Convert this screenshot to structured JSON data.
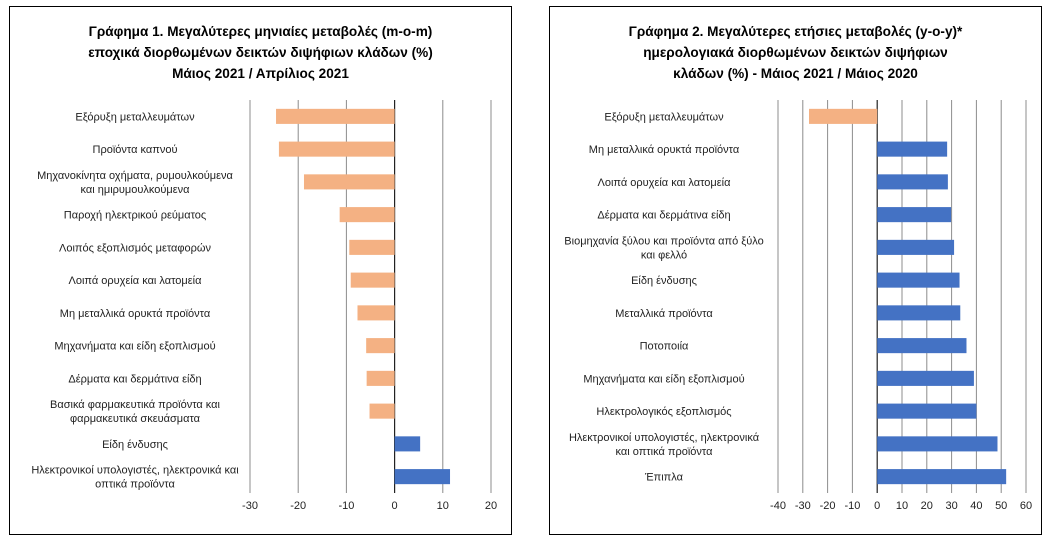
{
  "chart_data": [
    {
      "type": "bar",
      "orientation": "horizontal",
      "title_lines": [
        "Γράφημα 1. Μεγαλύτερες μηνιαίες μεταβολές (m-o-m)",
        "εποχικά διορθωμένων δεικτών διψήφιων κλάδων (%)",
        "Μάιος 2021 / Απρίλιος 2021"
      ],
      "categories": [
        [
          "Εξόρυξη μεταλλευμάτων"
        ],
        [
          "Προϊόντα καπνού"
        ],
        [
          "Μηχανοκίνητα οχήματα, ρυμουλκούμενα",
          "και ημιρυμουλκούμενα"
        ],
        [
          "Παροχή ηλεκτρικού ρεύματος"
        ],
        [
          "Λοιπός εξοπλισμός μεταφορών"
        ],
        [
          "Λοιπά ορυχεία και λατομεία"
        ],
        [
          "Μη μεταλλικά ορυκτά προϊόντα"
        ],
        [
          "Μηχανήματα και είδη εξοπλισμού"
        ],
        [
          "Δέρματα και δερμάτινα είδη"
        ],
        [
          "Βασικά φαρμακευτικά προϊόντα και",
          "φαρμακευτικά σκευάσματα"
        ],
        [
          "Είδη ένδυσης"
        ],
        [
          "Ηλεκτρονικοί υπολογιστές, ηλεκτρονικά και",
          "οπτικά προϊόντα"
        ]
      ],
      "values": [
        -24.6,
        -24.0,
        -18.8,
        -11.4,
        -9.4,
        -9.1,
        -7.7,
        -5.9,
        -5.8,
        -5.2,
        5.3,
        11.5
      ],
      "xlim": [
        -30,
        20
      ],
      "xticks": [
        -30,
        -20,
        -10,
        0,
        10,
        20
      ],
      "grid": true,
      "colors": {
        "negative": "#F4B183",
        "positive": "#4472C4"
      }
    },
    {
      "type": "bar",
      "orientation": "horizontal",
      "title_lines": [
        "Γράφημα 2. Μεγαλύτερες ετήσιες μεταβολές (y-o-y)*",
        "ημερολογιακά διορθωμένων δεικτών διψήφιων",
        "κλάδων (%) - Μάιος 2021 / Μάιος 2020"
      ],
      "categories": [
        [
          "Εξόρυξη μεταλλευμάτων"
        ],
        [
          "Μη μεταλλικά ορυκτά προϊόντα"
        ],
        [
          "Λοιπά ορυχεία και λατομεία"
        ],
        [
          "Δέρματα και δερμάτινα είδη"
        ],
        [
          "Βιομηχανία ξύλου και προϊόντα από ξύλο",
          "και φελλό"
        ],
        [
          "Είδη ένδυσης"
        ],
        [
          "Μεταλλικά προϊόντα"
        ],
        [
          "Ποτοποιία"
        ],
        [
          "Μηχανήματα και είδη εξοπλισμού"
        ],
        [
          "Ηλεκτρολογικός εξοπλισμός"
        ],
        [
          "Ηλεκτρονικοί υπολογιστές, ηλεκτρονικά",
          "και οπτικά προϊόντα"
        ],
        [
          "Έπιπλα"
        ]
      ],
      "values": [
        -27.5,
        28.2,
        28.5,
        29.8,
        31.0,
        33.2,
        33.5,
        36.0,
        39.0,
        40.0,
        48.5,
        52.0
      ],
      "xlim": [
        -40,
        60
      ],
      "xticks": [
        -40,
        -30,
        -20,
        -10,
        0,
        10,
        20,
        30,
        40,
        50,
        60
      ],
      "grid": true,
      "colors": {
        "negative": "#F4B183",
        "positive": "#4472C4"
      }
    }
  ]
}
